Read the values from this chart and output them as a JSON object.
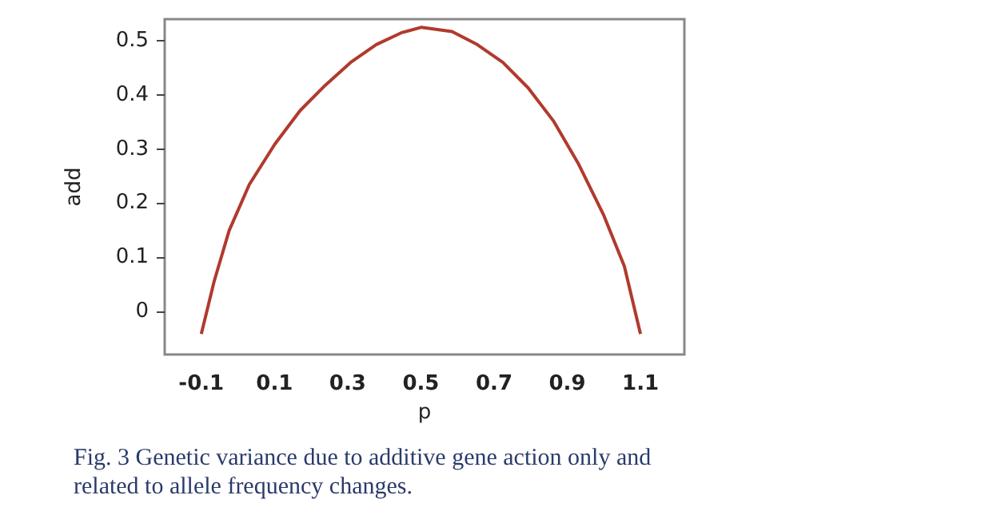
{
  "chart_data": {
    "type": "line",
    "xlabel": "p",
    "ylabel": "add",
    "x": [
      -0.1,
      -0.065,
      -0.024,
      0.031,
      0.101,
      0.17,
      0.239,
      0.308,
      0.378,
      0.447,
      0.502,
      0.585,
      0.654,
      0.724,
      0.793,
      0.862,
      0.931,
      1.0,
      1.056,
      1.1
    ],
    "series": [
      {
        "color": "#b03a2e",
        "values": [
          -0.042,
          0.055,
          0.149,
          0.234,
          0.309,
          0.371,
          0.418,
          0.46,
          0.493,
          0.515,
          0.525,
          0.517,
          0.493,
          0.46,
          0.413,
          0.352,
          0.272,
          0.177,
          0.083,
          -0.042
        ]
      }
    ],
    "xlim": [
      -0.2,
      1.22
    ],
    "ylim": [
      -0.08,
      0.54
    ],
    "xticks": [
      -0.1,
      0.1,
      0.3,
      0.5,
      0.7,
      0.9,
      1.1
    ],
    "yticks": [
      0,
      0.1,
      0.2,
      0.3,
      0.4,
      0.5
    ],
    "grid": false,
    "marker": "none",
    "line_style": "solid",
    "annotations": [
      "Fig. 3 Genetic variance due to additive gene action only and related to allele frequency changes."
    ]
  }
}
